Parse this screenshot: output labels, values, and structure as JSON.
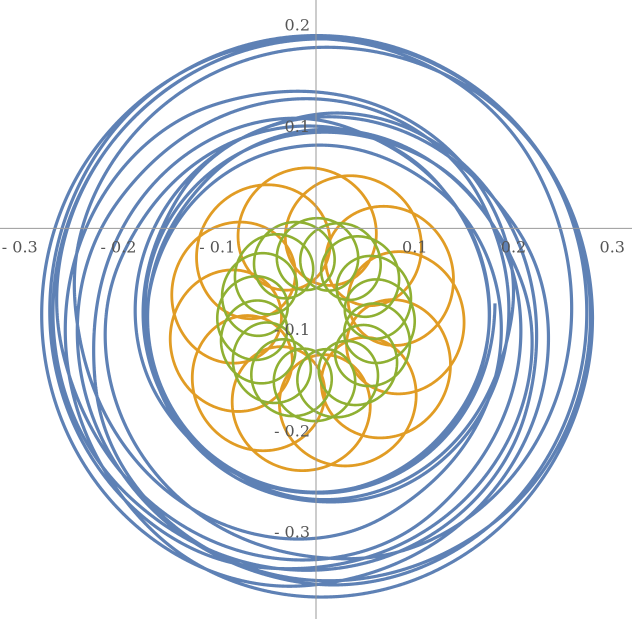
{
  "chart_data": {
    "type": "line",
    "title": "",
    "xlabel": "",
    "ylabel": "",
    "xlim": [
      -0.32,
      0.32
    ],
    "ylim": [
      -0.385,
      0.225
    ],
    "grid": false,
    "legend": "none",
    "x_ticks": [
      {
        "value": -0.3,
        "label": "- 0.3"
      },
      {
        "value": -0.2,
        "label": "- 0.2"
      },
      {
        "value": -0.1,
        "label": "- 0.1"
      },
      {
        "value": 0.1,
        "label": "0.1"
      },
      {
        "value": 0.2,
        "label": "0.2"
      },
      {
        "value": 0.3,
        "label": "0.3"
      }
    ],
    "y_ticks": [
      {
        "value": 0.2,
        "label": "0.2"
      },
      {
        "value": 0.1,
        "label": "0.1"
      },
      {
        "value": -0.1,
        "label": "- 0.1"
      },
      {
        "value": -0.2,
        "label": "- 0.2"
      },
      {
        "value": -0.3,
        "label": "- 0.3"
      }
    ],
    "series": [
      {
        "color": "#5e81b5",
        "style": "parametric rosette trajectory",
        "center": [
          0.0,
          -0.09
        ],
        "radius_min": 0.17,
        "radius_max": 0.28,
        "lobes": 8,
        "turns": 14
      },
      {
        "color": "#e19c24",
        "style": "parametric loop trajectory",
        "center": [
          0.0,
          -0.09
        ],
        "radius_min": 0.035,
        "radius_max": 0.15,
        "lobes": 12,
        "turns": 1
      },
      {
        "color": "#8fb032",
        "style": "parametric small-loop trajectory",
        "center": [
          0.0,
          -0.09
        ],
        "radius_min": 0.03,
        "radius_max": 0.1,
        "lobes": 17,
        "turns": 1
      }
    ]
  }
}
